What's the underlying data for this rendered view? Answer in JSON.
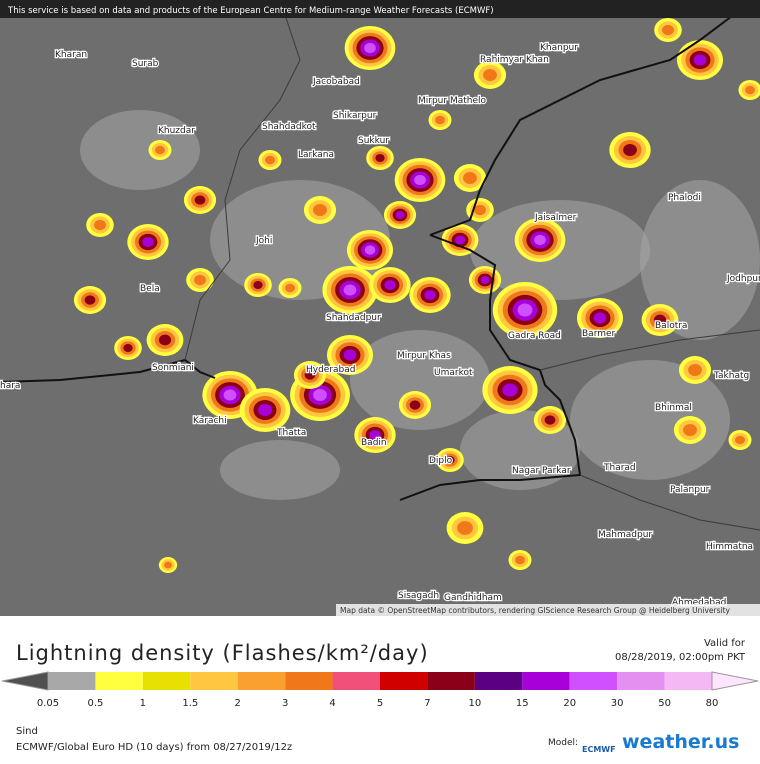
{
  "banner": "This service is based on data and products of the European Centre for Medium-range Weather Forecasts (ECMWF)",
  "cities": [
    "Kharan",
    "Surab",
    "Khuzdar",
    "Jacobabad",
    "Shikarpur",
    "Shahdadkot",
    "Larkana",
    "Sukkur",
    "Mirpur Mathelo",
    "Rahimyar Khan",
    "Khanpur",
    "Phalodi",
    "Jaisalmer",
    "Johi",
    "Bela",
    "Shahdadpur",
    "Jodhpur",
    "Sonmiani",
    "Hyderabad",
    "Mirpur Khas",
    "Umarkot",
    "Gadra Road",
    "Barmer",
    "Balotra",
    "Karachi",
    "Thatta",
    "Badin",
    "Diplo",
    "Nagar Parkar",
    "Tharad",
    "Bhinmal",
    "Takhatg",
    "Palanpur",
    "Mahmadpur",
    "Himmatna",
    "Sisagadh",
    "Gandhidham",
    "Ahmedabad",
    "hara"
  ],
  "attribution": "Map data © OpenStreetMap contributors, rendering GIScience Research Group @ Heidelberg University",
  "legend": {
    "title": "Lightning density (Flashes/km²/day)",
    "ticks": [
      "0.05",
      "0.5",
      "1",
      "1.5",
      "2",
      "3",
      "4",
      "5",
      "7",
      "10",
      "15",
      "20",
      "30",
      "50",
      "80"
    ],
    "colors": [
      "#505050",
      "#a8a8a8",
      "#ffff40",
      "#e8e000",
      "#ffc640",
      "#f9a030",
      "#f07818",
      "#f0507a",
      "#d00000",
      "#8a0018",
      "#5a0080",
      "#a800d8",
      "#d050ff",
      "#e490f0",
      "#f4b8f4",
      "#ffe4ff"
    ]
  },
  "valid_label": "Valid for",
  "valid_time": "08/28/2019, 02:00pm PKT",
  "region": "Sind",
  "model_info": "ECMWF/Global Euro HD (10 days) from 08/27/2019/12z",
  "model_label": "Model:",
  "model_logo": "ECMWF",
  "brand": "weather.us"
}
